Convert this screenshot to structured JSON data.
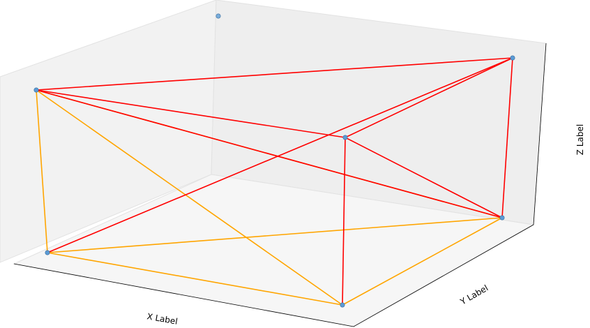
{
  "chart_data": {
    "type": "scatter",
    "projection": "3d",
    "title": "",
    "xlabel": "X Label",
    "ylabel": "Y Label",
    "zlabel": "Z Label",
    "grid": false,
    "points": [
      {
        "id": "p1",
        "role": "marker"
      },
      {
        "id": "p2",
        "role": "marker"
      },
      {
        "id": "p3",
        "role": "marker"
      },
      {
        "id": "p4",
        "role": "marker"
      },
      {
        "id": "p5",
        "role": "marker"
      },
      {
        "id": "p6",
        "role": "marker"
      },
      {
        "id": "p7",
        "role": "marker"
      }
    ],
    "edges": [
      {
        "from": "p2",
        "to": "p3",
        "color": "#ff0000"
      },
      {
        "from": "p2",
        "to": "p4",
        "color": "#ff0000"
      },
      {
        "from": "p2",
        "to": "p5",
        "color": "#ff0000"
      },
      {
        "from": "p3",
        "to": "p4",
        "color": "#ff0000"
      },
      {
        "from": "p3",
        "to": "p5",
        "color": "#ff0000"
      },
      {
        "from": "p3",
        "to": "p6",
        "color": "#ff0000"
      },
      {
        "from": "p4",
        "to": "p5",
        "color": "#ff0000"
      },
      {
        "from": "p4",
        "to": "p7",
        "color": "#ff0000"
      },
      {
        "from": "p2",
        "to": "p6",
        "color": "#ffa500"
      },
      {
        "from": "p2",
        "to": "p7",
        "color": "#ffa500"
      },
      {
        "from": "p2",
        "to": "p5",
        "color": "#ffa500"
      },
      {
        "from": "p6",
        "to": "p7",
        "color": "#ffa500"
      },
      {
        "from": "p6",
        "to": "p5",
        "color": "#ffa500"
      },
      {
        "from": "p7",
        "to": "p5",
        "color": "#ffa500"
      }
    ],
    "colors": {
      "marker": "#5b9bd5",
      "marker_edge": "#3a6fa0",
      "red_edges": "#ff0000",
      "orange_edges": "#ffa500",
      "pane": "#f2f2f2",
      "pane_edge": "#e2e2e2",
      "axis_line": "#000000"
    }
  }
}
